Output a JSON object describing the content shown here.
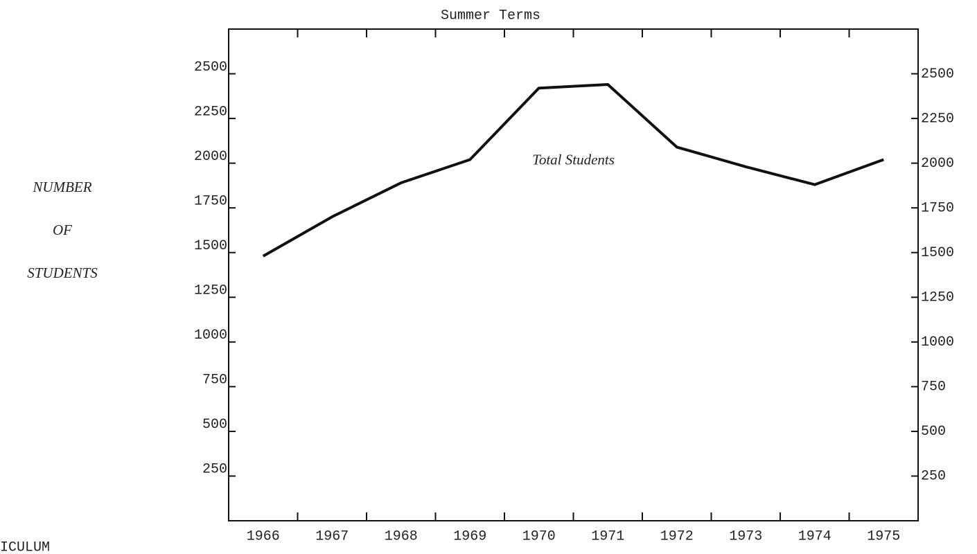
{
  "chart_data": {
    "type": "line",
    "title": "Summer Terms",
    "ylabel_lines": [
      "NUMBER",
      "OF",
      "STUDENTS"
    ],
    "categories": [
      "1966",
      "1967",
      "1968",
      "1969",
      "1970",
      "1971",
      "1972",
      "1973",
      "1974",
      "1975"
    ],
    "series": [
      {
        "name": "Total Students",
        "color": "#111111",
        "values": [
          1480,
          1700,
          1890,
          2020,
          2420,
          2440,
          2090,
          1980,
          1880,
          2020
        ]
      }
    ],
    "ylim": [
      0,
      2750
    ],
    "yticks": [
      250,
      500,
      750,
      1000,
      1250,
      1500,
      1750,
      2000,
      2250,
      2500
    ],
    "right_axis_mirrors_left": true,
    "grid": false,
    "page_fragment": "ICULUM"
  }
}
